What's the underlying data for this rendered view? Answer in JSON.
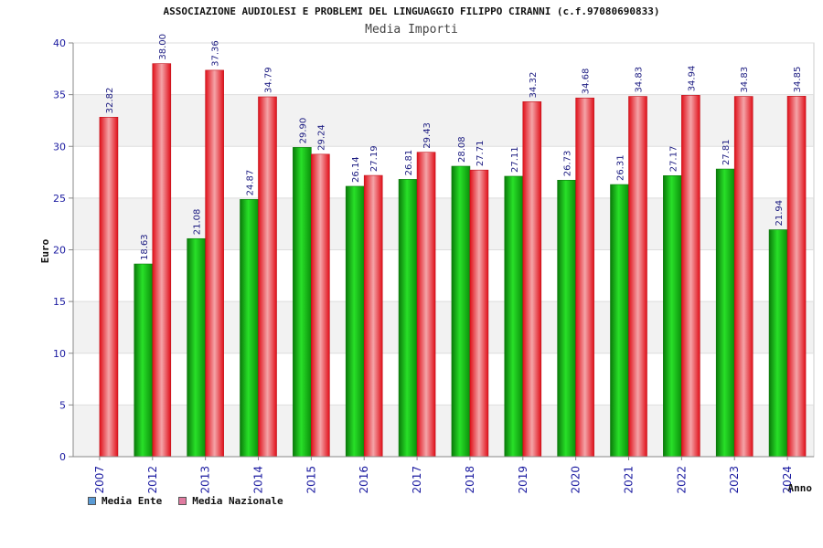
{
  "header": {
    "title": "ASSOCIAZIONE AUDIOLESI E PROBLEMI DEL LINGUAGGIO FILIPPO CIRANNI (c.f.97080690833)",
    "subtitle": "Media Importi"
  },
  "legend": {
    "items": [
      {
        "label": "Media Ente",
        "color": "#5a9bd5"
      },
      {
        "label": "Media Nazionale",
        "color": "#e07ba0"
      }
    ]
  },
  "chart_data": {
    "type": "bar",
    "title": "Media Importi",
    "xlabel": "Anno",
    "ylabel": "Euro",
    "ylim": [
      0,
      40
    ],
    "yticks": [
      0,
      5,
      10,
      15,
      20,
      25,
      30,
      35,
      40
    ],
    "grid": "horizontal",
    "legend_position": "bottom-left",
    "categories": [
      "2007",
      "2012",
      "2013",
      "2014",
      "2015",
      "2016",
      "2017",
      "2018",
      "2019",
      "2020",
      "2021",
      "2022",
      "2023",
      "2024"
    ],
    "series": [
      {
        "name": "Media Ente",
        "color": "#12b312",
        "values": [
          null,
          18.63,
          21.08,
          24.87,
          29.9,
          26.14,
          26.81,
          28.08,
          27.11,
          26.73,
          26.31,
          27.17,
          27.81,
          21.94
        ]
      },
      {
        "name": "Media Nazionale",
        "color": "#e8202a",
        "values": [
          32.82,
          38.0,
          37.36,
          34.79,
          29.24,
          27.19,
          29.43,
          27.71,
          34.32,
          34.68,
          34.83,
          34.94,
          34.83,
          34.85
        ]
      }
    ]
  }
}
